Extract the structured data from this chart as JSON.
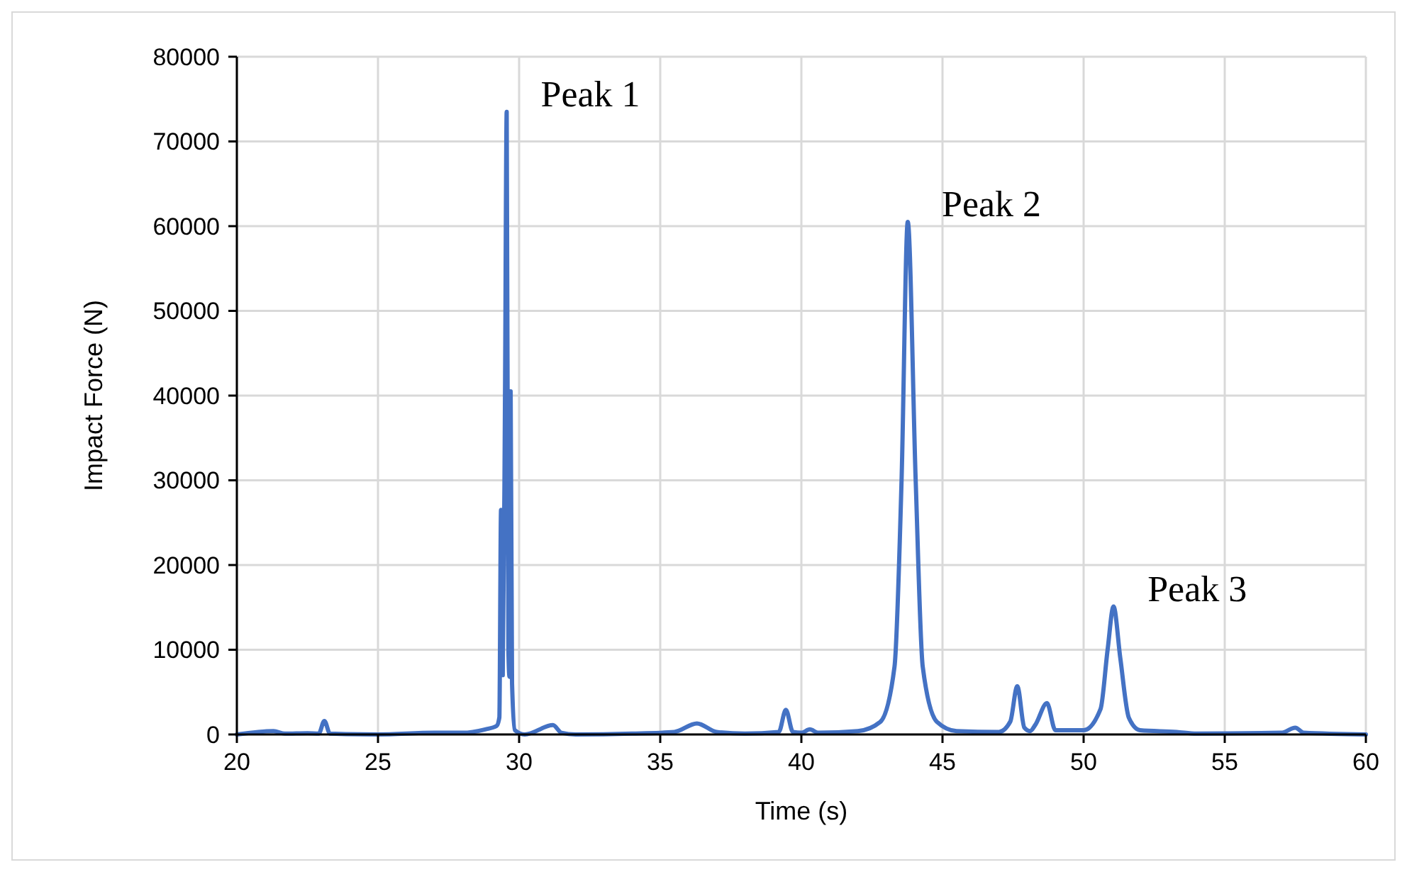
{
  "chart_data": {
    "type": "line",
    "xlabel": "Time (s)",
    "ylabel": "Impact Force (N)",
    "xlim": [
      20,
      60
    ],
    "xticks": [
      20,
      25,
      30,
      35,
      40,
      45,
      50,
      55,
      60
    ],
    "ylim": [
      0,
      80000
    ],
    "yticks": [
      0,
      10000,
      20000,
      30000,
      40000,
      50000,
      60000,
      70000,
      80000
    ],
    "grid": true,
    "marker": "none",
    "line_style": "solid",
    "series": [
      {
        "color": "#4472c4",
        "x": [
          20,
          21.3,
          21.7,
          22.5,
          22.9,
          23.1,
          23.3,
          25,
          27,
          28,
          28.8,
          29.2,
          29.3,
          29.36,
          29.42,
          29.5,
          29.56,
          29.62,
          29.66,
          29.7,
          29.75,
          29.85,
          30.2,
          31.2,
          31.5,
          32,
          34,
          35.5,
          36.3,
          37,
          38,
          39.2,
          39.45,
          39.7,
          40,
          40.3,
          40.6,
          42,
          42.8,
          43.3,
          43.55,
          43.77,
          44.05,
          44.3,
          44.8,
          45.5,
          47,
          47.4,
          47.65,
          47.9,
          48.1,
          48.3,
          48.7,
          49,
          50,
          50.6,
          50.85,
          51.06,
          51.3,
          51.6,
          52,
          53.3,
          54,
          57,
          57.5,
          57.8,
          60
        ],
        "values": [
          0,
          400,
          100,
          150,
          100,
          1600,
          100,
          0,
          200,
          200,
          600,
          1000,
          2000,
          26500,
          7000,
          40000,
          73500,
          10000,
          6800,
          40500,
          6000,
          500,
          0,
          1100,
          200,
          0,
          100,
          300,
          1300,
          300,
          100,
          300,
          2900,
          300,
          200,
          600,
          200,
          400,
          1500,
          8000,
          30000,
          60500,
          30000,
          8000,
          1500,
          400,
          300,
          1500,
          5700,
          800,
          400,
          1200,
          3700,
          500,
          500,
          3000,
          10000,
          15100,
          9000,
          2000,
          500,
          300,
          100,
          200,
          800,
          200,
          0
        ]
      }
    ],
    "annotations": [
      {
        "text": "Peak 1",
        "x": 29.56,
        "y": 73500
      },
      {
        "text": "Peak 2",
        "x": 43.77,
        "y": 60500
      },
      {
        "text": "Peak 3",
        "x": 51.06,
        "y": 15100
      }
    ]
  }
}
